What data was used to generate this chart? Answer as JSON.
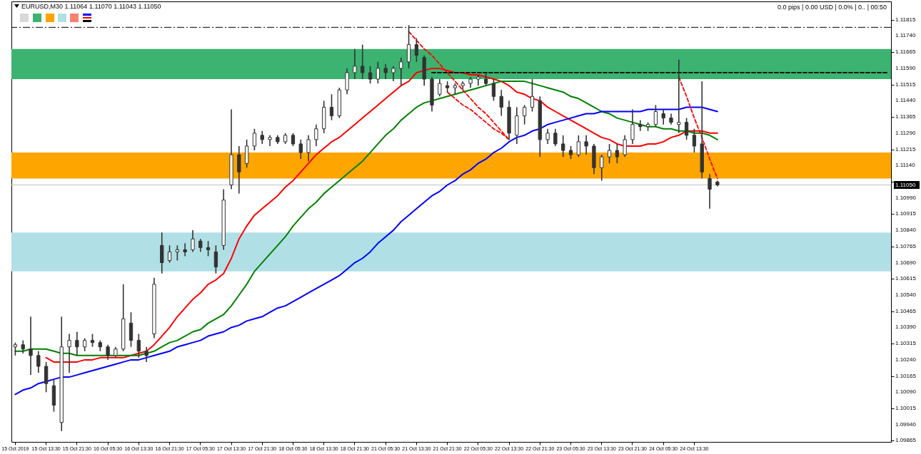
{
  "chart_data": {
    "type": "candlestick",
    "title": "EURUSD,M30  1.11064 1.11070 1.11043 1.11050",
    "annotations": [
      "0.0 pips | 0.00 USD | 0.0% | 0.. | 00:50"
    ],
    "categories": [
      "15 Oct 2019",
      null,
      null,
      null,
      "15 Oct 13:30",
      null,
      null,
      null,
      "15 Oct 21:30",
      null,
      null,
      null,
      "16 Oct 05:30",
      null,
      null,
      null,
      "16 Oct 13:30",
      null,
      null,
      null,
      "16 Oct 21:30",
      null,
      null,
      null,
      "17 Oct 05:30",
      null,
      null,
      null,
      "17 Oct 13:30",
      null,
      null,
      null,
      "17 Oct 21:30",
      null,
      null,
      null,
      "18 Oct 05:30",
      null,
      null,
      null,
      "18 Oct 13:30",
      null,
      null,
      null,
      "18 Oct 21:30",
      null,
      null,
      null,
      "21 Oct 05:30",
      null,
      null,
      null,
      "21 Oct 13:30",
      null,
      null,
      null,
      "21 Oct 21:30",
      null,
      null,
      null,
      "22 Oct 05:30",
      null,
      null,
      null,
      "22 Oct 13:30",
      null,
      null,
      null,
      "22 Oct 21:30",
      null,
      null,
      null,
      "23 Oct 05:30",
      null,
      null,
      null,
      "23 Oct 13:30",
      null,
      null,
      null,
      "23 Oct 21:30",
      null,
      null,
      null,
      "24 Oct 05:30",
      null,
      null,
      null,
      "24 Oct 13:30",
      null,
      null,
      null,
      null,
      null,
      null,
      null,
      null,
      null,
      null,
      null,
      null,
      null,
      null,
      null,
      null,
      null,
      null,
      null,
      null,
      null,
      null,
      null,
      null,
      null
    ],
    "ohlc": [
      [
        1.103,
        1.1032,
        1.1026,
        1.1031
      ],
      [
        1.1031,
        1.1033,
        1.1027,
        1.1029
      ],
      [
        1.1029,
        1.1044,
        1.1017,
        1.1026
      ],
      [
        1.1026,
        1.1028,
        1.1018,
        1.1021
      ],
      [
        1.1021,
        1.1023,
        1.1009,
        1.1013
      ],
      [
        1.1012,
        1.1015,
        1.1,
        1.1003
      ],
      [
        1.0995,
        1.1044,
        1.0991,
        1.103
      ],
      [
        1.103,
        1.1036,
        1.1018,
        1.1033
      ],
      [
        1.1033,
        1.1037,
        1.1026,
        1.103
      ],
      [
        1.103,
        1.1034,
        1.1028,
        1.1033
      ],
      [
        1.1033,
        1.1036,
        1.103,
        1.1032
      ],
      [
        1.1032,
        1.1033,
        1.1028,
        1.103
      ],
      [
        1.103,
        1.1031,
        1.1024,
        1.1026
      ],
      [
        1.1026,
        1.103,
        1.1025,
        1.1029
      ],
      [
        1.1029,
        1.1059,
        1.1028,
        1.1043
      ],
      [
        1.1041,
        1.1046,
        1.103,
        1.1033
      ],
      [
        1.1033,
        1.1036,
        1.1025,
        1.1028
      ],
      [
        1.1028,
        1.103,
        1.1023,
        1.1026
      ],
      [
        1.1036,
        1.1062,
        1.1034,
        1.1059
      ],
      [
        1.1077,
        1.1083,
        1.1064,
        1.1069
      ],
      [
        1.107,
        1.1077,
        1.1069,
        1.1074
      ],
      [
        1.1074,
        1.1077,
        1.107,
        1.1075
      ],
      [
        1.1075,
        1.1078,
        1.1072,
        1.1074
      ],
      [
        1.1075,
        1.1084,
        1.1074,
        1.108
      ],
      [
        1.1079,
        1.108,
        1.1074,
        1.1076
      ],
      [
        1.1076,
        1.1079,
        1.1072,
        1.1075
      ],
      [
        1.1074,
        1.1077,
        1.1064,
        1.1067
      ],
      [
        1.1077,
        1.1103,
        1.1075,
        1.1098
      ],
      [
        1.1105,
        1.114,
        1.1103,
        1.1119
      ],
      [
        1.1119,
        1.1123,
        1.1101,
        1.1111
      ],
      [
        1.1115,
        1.1126,
        1.1113,
        1.1123
      ],
      [
        1.1123,
        1.1131,
        1.1121,
        1.1129
      ],
      [
        1.1128,
        1.113,
        1.1124,
        1.1126
      ],
      [
        1.1126,
        1.1128,
        1.1123,
        1.1127
      ],
      [
        1.1127,
        1.1128,
        1.1124,
        1.1125
      ],
      [
        1.1125,
        1.1129,
        1.1124,
        1.1128
      ],
      [
        1.1128,
        1.1129,
        1.1123,
        1.1124
      ],
      [
        1.1124,
        1.1126,
        1.1117,
        1.112
      ],
      [
        1.112,
        1.1128,
        1.1116,
        1.1126
      ],
      [
        1.1126,
        1.1133,
        1.1123,
        1.1131
      ],
      [
        1.1131,
        1.1144,
        1.1129,
        1.1141
      ],
      [
        1.1141,
        1.1147,
        1.1135,
        1.1137
      ],
      [
        1.1137,
        1.115,
        1.1136,
        1.1149
      ],
      [
        1.1149,
        1.1159,
        1.1147,
        1.1157
      ],
      [
        1.1157,
        1.1168,
        1.1154,
        1.116
      ],
      [
        1.116,
        1.117,
        1.1154,
        1.1157
      ],
      [
        1.1157,
        1.116,
        1.1152,
        1.1154
      ],
      [
        1.1154,
        1.1162,
        1.1152,
        1.1159
      ],
      [
        1.1159,
        1.1161,
        1.1154,
        1.1157
      ],
      [
        1.1157,
        1.116,
        1.1153,
        1.1159
      ],
      [
        1.1159,
        1.1164,
        1.1151,
        1.1162
      ],
      [
        1.1162,
        1.1179,
        1.1159,
        1.117
      ],
      [
        1.117,
        1.1173,
        1.1162,
        1.1165
      ],
      [
        1.1164,
        1.1165,
        1.1151,
        1.1154
      ],
      [
        1.1154,
        1.1155,
        1.1139,
        1.1142
      ],
      [
        1.1147,
        1.1154,
        1.1146,
        1.1152
      ],
      [
        1.1151,
        1.1153,
        1.1148,
        1.115
      ],
      [
        1.115,
        1.1152,
        1.1147,
        1.1151
      ],
      [
        1.1151,
        1.1153,
        1.1149,
        1.1152
      ],
      [
        1.1152,
        1.1155,
        1.115,
        1.1154
      ],
      [
        1.1154,
        1.1156,
        1.1151,
        1.1155
      ],
      [
        1.1154,
        1.1157,
        1.1151,
        1.1152
      ],
      [
        1.1152,
        1.1154,
        1.1144,
        1.1146
      ],
      [
        1.1146,
        1.1149,
        1.1137,
        1.1141
      ],
      [
        1.1141,
        1.1144,
        1.1126,
        1.1129
      ],
      [
        1.1128,
        1.1141,
        1.1124,
        1.1137
      ],
      [
        1.1137,
        1.1142,
        1.1133,
        1.1141
      ],
      [
        1.1141,
        1.1154,
        1.1139,
        1.1146
      ],
      [
        1.1144,
        1.1146,
        1.1118,
        1.1126
      ],
      [
        1.1126,
        1.1131,
        1.1124,
        1.1129
      ],
      [
        1.1129,
        1.1131,
        1.1123,
        1.1124
      ],
      [
        1.1124,
        1.1128,
        1.1118,
        1.1121
      ],
      [
        1.1121,
        1.1123,
        1.1117,
        1.1119
      ],
      [
        1.1119,
        1.1128,
        1.1118,
        1.1125
      ],
      [
        1.1125,
        1.1128,
        1.1119,
        1.1123
      ],
      [
        1.1123,
        1.1124,
        1.111,
        1.1113
      ],
      [
        1.1113,
        1.1119,
        1.1107,
        1.1118
      ],
      [
        1.1118,
        1.1124,
        1.1115,
        1.1121
      ],
      [
        1.1121,
        1.1124,
        1.1115,
        1.1118
      ],
      [
        1.1119,
        1.1128,
        1.1118,
        1.1126
      ],
      [
        1.1126,
        1.114,
        1.1124,
        1.1133
      ],
      [
        1.1133,
        1.1135,
        1.113,
        1.1132
      ],
      [
        1.1132,
        1.1134,
        1.113,
        1.1133
      ],
      [
        1.1133,
        1.1142,
        1.1132,
        1.1139
      ],
      [
        1.1138,
        1.114,
        1.1133,
        1.1136
      ],
      [
        1.1136,
        1.1138,
        1.1133,
        1.1134
      ],
      [
        1.1133,
        1.1163,
        1.1129,
        1.1134
      ],
      [
        1.1134,
        1.1136,
        1.1126,
        1.1128
      ],
      [
        1.1128,
        1.1131,
        1.112,
        1.1123
      ],
      [
        1.1124,
        1.1153,
        1.1108,
        1.1111
      ],
      [
        1.1108,
        1.111,
        1.1094,
        1.1103
      ],
      [
        1.11064,
        1.1107,
        1.11043,
        1.1105
      ],
      null,
      null,
      null,
      null,
      null,
      null,
      null,
      null,
      null,
      null,
      null,
      null,
      null,
      null,
      null,
      null,
      null,
      null,
      null,
      null,
      null,
      null
    ],
    "series": [
      {
        "type": "line",
        "color": "#ff0000",
        "values": [
          null,
          null,
          null,
          null,
          1.1025,
          1.1023,
          1.1023,
          1.1023,
          1.1023,
          1.1024,
          1.1024,
          1.1025,
          1.1025,
          1.1025,
          1.1025,
          1.1026,
          1.1027,
          1.1028,
          1.1031,
          1.1035,
          1.1039,
          1.1044,
          1.1048,
          1.1052,
          1.1055,
          1.1059,
          1.1061,
          1.1064,
          1.1071,
          1.108,
          1.1086,
          1.1091,
          1.1094,
          1.1097,
          1.11,
          1.1104,
          1.1107,
          1.1111,
          1.1115,
          1.1119,
          1.1122,
          1.1125,
          1.1127,
          1.113,
          1.1133,
          1.1136,
          1.1139,
          1.1142,
          1.1145,
          1.1148,
          1.1151,
          1.1153,
          1.1157,
          1.1158,
          1.1159,
          1.1159,
          1.1158,
          1.1157,
          1.1157,
          1.1156,
          1.1156,
          1.1155,
          1.1154,
          1.1153,
          1.1151,
          1.1148,
          1.1147,
          1.1145,
          1.1144,
          1.1141,
          1.1139,
          1.1137,
          1.1135,
          1.1133,
          1.1131,
          1.1129,
          1.1127,
          1.1126,
          1.1124,
          1.1123,
          1.1123,
          1.1123,
          1.1124,
          1.1124,
          1.1125,
          1.1127,
          1.1128,
          1.113,
          1.113,
          1.113,
          1.1129,
          1.1129,
          null,
          null,
          null,
          null,
          null,
          null,
          null,
          null,
          null,
          null,
          null,
          null,
          null,
          null,
          null,
          null,
          null,
          null,
          null,
          null,
          null,
          null
        ]
      },
      {
        "type": "line",
        "color": "#008000",
        "values": [
          1.1028,
          1.1028,
          1.1029,
          1.1029,
          1.1029,
          1.1028,
          1.1027,
          1.1027,
          1.1026,
          1.1026,
          1.1026,
          1.1026,
          1.1026,
          1.1026,
          1.1026,
          1.1026,
          1.1026,
          1.1027,
          1.1028,
          1.103,
          1.1032,
          1.1033,
          1.1035,
          1.1037,
          1.1038,
          1.1041,
          1.1043,
          1.1045,
          1.1049,
          1.1054,
          1.1059,
          1.1065,
          1.1069,
          1.1073,
          1.1077,
          1.1081,
          1.1086,
          1.109,
          1.1094,
          1.1097,
          1.1101,
          1.1104,
          1.1107,
          1.111,
          1.1113,
          1.1116,
          1.112,
          1.1124,
          1.1128,
          1.1131,
          1.1135,
          1.1138,
          1.1141,
          1.1143,
          1.1144,
          1.1145,
          1.1146,
          1.1147,
          1.1148,
          1.1149,
          1.115,
          1.1151,
          1.1152,
          1.1153,
          1.1153,
          1.1153,
          1.1153,
          1.1152,
          1.1151,
          1.115,
          1.1149,
          1.1148,
          1.1146,
          1.1145,
          1.1143,
          1.1141,
          1.1139,
          1.1138,
          1.1136,
          1.1135,
          1.1134,
          1.1133,
          1.1132,
          1.1132,
          1.1131,
          1.1131,
          1.113,
          1.113,
          1.1129,
          1.1129,
          1.1128,
          1.1126,
          null,
          null,
          null,
          null,
          null,
          null,
          null,
          null,
          null,
          null,
          null,
          null,
          null,
          null,
          null,
          null,
          null,
          null,
          null,
          null,
          null,
          null
        ]
      },
      {
        "type": "line",
        "color": "#0000ff",
        "values": [
          1.1008,
          1.101,
          1.1011,
          1.1013,
          1.1014,
          1.1015,
          1.1016,
          1.1016,
          1.1017,
          1.1018,
          1.1019,
          1.102,
          1.1021,
          1.1022,
          1.1023,
          1.1024,
          1.1024,
          1.1025,
          1.1026,
          1.1027,
          1.1028,
          1.103,
          1.1031,
          1.1032,
          1.1033,
          1.1035,
          1.1036,
          1.1037,
          1.1039,
          1.104,
          1.1042,
          1.1043,
          1.1044,
          1.1046,
          1.1048,
          1.1049,
          1.1051,
          1.1053,
          1.1055,
          1.1057,
          1.1059,
          1.1061,
          1.1063,
          1.1066,
          1.1069,
          1.1071,
          1.1074,
          1.1078,
          1.1081,
          1.1084,
          1.1088,
          1.1091,
          1.1094,
          1.1097,
          1.11,
          1.1102,
          1.1105,
          1.1107,
          1.111,
          1.1112,
          1.1115,
          1.1117,
          1.112,
          1.1122,
          1.1125,
          1.1127,
          1.1128,
          1.113,
          1.1131,
          1.1133,
          1.1134,
          1.1135,
          1.1136,
          1.1137,
          1.1138,
          1.1138,
          1.1139,
          1.1139,
          1.1139,
          1.1139,
          1.1139,
          1.1139,
          1.114,
          1.114,
          1.114,
          1.114,
          1.114,
          1.1141,
          1.1141,
          1.1141,
          1.114,
          1.1139,
          null,
          null,
          null,
          null,
          null,
          null,
          null,
          null,
          null,
          null,
          null,
          null,
          null,
          null,
          null,
          null,
          null,
          null,
          null,
          null,
          null,
          null
        ]
      },
      {
        "type": "line",
        "color": "#ff0000",
        "line_style": "dashed",
        "values": [
          null,
          null,
          null,
          null,
          null,
          null,
          null,
          null,
          null,
          null,
          null,
          null,
          null,
          null,
          null,
          null,
          null,
          null,
          null,
          null,
          null,
          null,
          null,
          null,
          null,
          null,
          null,
          null,
          null,
          null,
          null,
          null,
          null,
          null,
          null,
          null,
          null,
          null,
          null,
          null,
          null,
          null,
          null,
          null,
          null,
          null,
          null,
          null,
          null,
          null,
          null,
          1.1176,
          1.1172,
          1.1168,
          1.1165,
          1.1161,
          1.1157,
          1.1153,
          1.1149,
          1.1145,
          1.1141,
          1.1138,
          1.1134,
          1.113,
          1.1126,
          null,
          null,
          null,
          null,
          null,
          null,
          null,
          null,
          null,
          null,
          null,
          null,
          null,
          null,
          null,
          null,
          null,
          null,
          null,
          null,
          null,
          null,
          null,
          null,
          null,
          null,
          null,
          null,
          null,
          null,
          null,
          null,
          null,
          null,
          null,
          null,
          null,
          null,
          null,
          null,
          null,
          null,
          null,
          null,
          null,
          null,
          null,
          null,
          null
        ]
      },
      {
        "type": "line",
        "color": "#ff0000",
        "line_style": "dashed",
        "values": [
          null,
          null,
          null,
          null,
          null,
          null,
          null,
          null,
          null,
          null,
          null,
          null,
          null,
          null,
          null,
          null,
          null,
          null,
          null,
          null,
          null,
          null,
          null,
          null,
          null,
          null,
          null,
          null,
          null,
          null,
          null,
          null,
          null,
          null,
          null,
          null,
          null,
          null,
          null,
          null,
          null,
          null,
          null,
          null,
          null,
          null,
          null,
          null,
          null,
          null,
          null,
          null,
          null,
          null,
          null,
          null,
          1.1148,
          1.1145,
          1.1142,
          1.114,
          1.1137,
          1.1134,
          1.1131,
          1.1129,
          1.1126,
          null,
          null,
          null,
          null,
          null,
          null,
          null,
          null,
          null,
          null,
          null,
          null,
          null,
          null,
          null,
          null,
          null,
          null,
          null,
          null,
          null,
          null,
          null,
          null,
          null,
          null,
          null,
          null,
          null,
          null,
          null,
          null,
          null,
          null,
          null,
          null,
          null,
          null,
          null,
          null,
          null,
          null,
          null,
          null,
          null,
          null,
          null,
          null,
          null
        ]
      },
      {
        "type": "line",
        "color": "#ff0000",
        "line_style": "dashed",
        "values": [
          null,
          null,
          null,
          null,
          null,
          null,
          null,
          null,
          null,
          null,
          null,
          null,
          null,
          null,
          null,
          null,
          null,
          null,
          null,
          null,
          null,
          null,
          null,
          null,
          null,
          null,
          null,
          null,
          null,
          null,
          null,
          null,
          null,
          null,
          null,
          null,
          null,
          null,
          null,
          null,
          null,
          null,
          null,
          null,
          null,
          null,
          null,
          null,
          null,
          null,
          null,
          null,
          null,
          null,
          null,
          null,
          null,
          null,
          null,
          null,
          null,
          null,
          null,
          null,
          null,
          null,
          null,
          null,
          null,
          null,
          null,
          null,
          null,
          null,
          null,
          null,
          null,
          null,
          null,
          null,
          null,
          null,
          null,
          null,
          null,
          null,
          1.1155,
          1.1146,
          1.1136,
          1.1127,
          1.1117,
          1.1108,
          null,
          null,
          null,
          null,
          null,
          null,
          null,
          null,
          null,
          null,
          null,
          null,
          null,
          null,
          null,
          null,
          null,
          null,
          null,
          null,
          null,
          null
        ]
      },
      {
        "type": "line",
        "color": "#000000",
        "line_style": "dashed",
        "values": [
          null,
          null,
          null,
          null,
          null,
          null,
          null,
          null,
          null,
          null,
          null,
          null,
          null,
          null,
          null,
          null,
          null,
          null,
          null,
          null,
          null,
          null,
          null,
          null,
          null,
          null,
          null,
          null,
          null,
          null,
          null,
          null,
          null,
          null,
          null,
          null,
          null,
          null,
          null,
          null,
          null,
          null,
          null,
          null,
          null,
          null,
          null,
          null,
          null,
          null,
          null,
          null,
          null,
          null,
          1.1157,
          1.1157,
          1.1157,
          1.1157,
          1.1157,
          1.1157,
          1.1157,
          1.1157,
          1.1157,
          1.1157,
          1.1157,
          1.1157,
          1.1157,
          1.1157,
          1.1157,
          1.1157,
          1.1157,
          1.1157,
          1.1157,
          1.1157,
          1.1157,
          1.1157,
          1.1157,
          1.1157,
          1.1157,
          1.1157,
          1.1157,
          1.1157,
          1.1157,
          1.1157,
          1.1157,
          1.1157,
          1.1157,
          1.1157,
          1.1157,
          1.1157,
          1.1157,
          1.1157,
          1.1157,
          1.1157,
          1.1157,
          1.1157,
          1.1157,
          1.1157,
          1.1157,
          1.1157,
          1.1157,
          1.1157,
          1.1157,
          1.1157,
          1.1157,
          1.1157,
          1.1157,
          1.1157,
          1.1157,
          1.1157,
          1.1157,
          1.1157,
          1.1157,
          1.1157
        ]
      }
    ],
    "bands": [
      {
        "axis": "y",
        "from": 1.1154,
        "to": 1.1168,
        "color": "#3cb371"
      },
      {
        "axis": "y",
        "from": 1.1108,
        "to": 1.112,
        "color": "#ffa500"
      },
      {
        "axis": "y",
        "from": 1.1065,
        "to": 1.1083,
        "color": "#b0e0e6"
      }
    ],
    "ref_lines": [
      {
        "axis": "y",
        "value": 1.1178,
        "color": "#000000",
        "line_style": "dashed"
      },
      {
        "axis": "y",
        "value": 1.1105,
        "label": "1.11050",
        "color": "#c0c0c0"
      }
    ],
    "ylim": [
      1.0986,
      1.119
    ],
    "yticks": [
      1.09865,
      {
        "value": 1.0994,
        "label": "1.09940"
      },
      1.10015,
      {
        "value": 1.1009,
        "label": "1.10090"
      },
      1.10165,
      {
        "value": 1.1024,
        "label": "1.10240"
      },
      1.10315,
      {
        "value": 1.1039,
        "label": "1.10390"
      },
      1.10465,
      {
        "value": 1.1054,
        "label": "1.10540"
      },
      1.10615,
      {
        "value": 1.1069,
        "label": "1.10690"
      },
      1.10765,
      {
        "value": 1.1084,
        "label": "1.10840"
      },
      1.10915,
      {
        "value": 1.1099,
        "label": "1.10990"
      },
      {
        "value": 1.11065,
        "label": null
      },
      {
        "value": 1.1114,
        "label": "1.11140"
      },
      1.11215,
      {
        "value": 1.1129,
        "label": "1.11290"
      },
      1.11365,
      {
        "value": 1.1144,
        "label": "1.11440"
      },
      1.11515,
      {
        "value": 1.1159,
        "label": "1.11590"
      },
      1.11665,
      {
        "value": 1.1174,
        "label": "1.11740"
      },
      1.11815
    ]
  }
}
